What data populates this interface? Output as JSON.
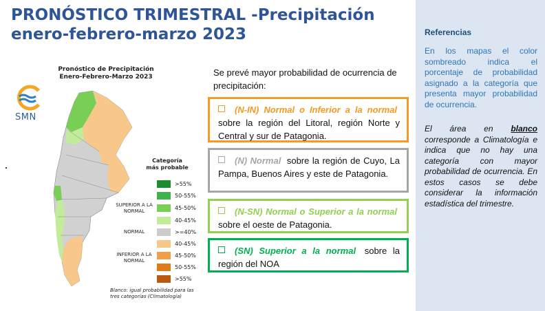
{
  "title": {
    "line1": "PRONÓSTICO TRIMESTRAL -Precipitación",
    "line2": "enero-febrero-marzo 2023"
  },
  "map": {
    "title_line1": "Pronóstico de Precipitación",
    "title_line2": "Enero-Febrero-Marzo 2023",
    "logo_text": "SMN",
    "legend_title": "Categoría más probable",
    "legend": [
      {
        "label": ">55%",
        "color": "#1e8c2c"
      },
      {
        "label": "50-55%",
        "color": "#3cb44b"
      },
      {
        "label": "45-50%",
        "color": "#79cf55"
      },
      {
        "label": "40-45%",
        "color": "#c2eb9a"
      },
      {
        "label": ">=40%",
        "color": "#cccccc"
      },
      {
        "label": "40-45%",
        "color": "#f8c88a"
      },
      {
        "label": "45-50%",
        "color": "#f0a04a"
      },
      {
        "label": "50-55%",
        "color": "#e07b1c"
      },
      {
        "label": ">55%",
        "color": "#b85a10"
      }
    ],
    "group_superior": "SUPERIOR A LA NORMAL",
    "group_normal": "NORMAL",
    "group_inferior": "INFERIOR A LA NORMAL",
    "note": "Blanco: igual probabilidad para las tres categorías (Climatología)"
  },
  "intro": "Se prevé mayor probabilidad de ocurrencia de precipitación:",
  "boxes": [
    {
      "lead": "(N-IN) Normal o Inferior a la normal",
      "text": "sobre la región del Litoral, región Norte y Central y sur de Patagonia."
    },
    {
      "lead": "(N) Normal",
      "text": "sobre la región de Cuyo, La Pampa, Buenos Aires y este de Patagonia."
    },
    {
      "lead": "(N-SN) Normal o Superior a la normal",
      "text": "sobre el oeste de Patagonia."
    },
    {
      "lead": "(SN) Superior a la normal",
      "text": "sobre la región del NOA"
    }
  ],
  "references": {
    "title": "Referencias",
    "p1": "En los mapas el color sombreado indica el porcentaje de probabilidad asignado a la categoría que presenta mayor probabilidad de ocurrencia.",
    "p2_pre": "El área en",
    "p2_bold": "blanco",
    "p2_post": "corresponde a Climatología e indica que no hay una categoría con mayor probabilidad de ocurrencia. En estos casos se debe considerar la información estadística del trimestre."
  }
}
